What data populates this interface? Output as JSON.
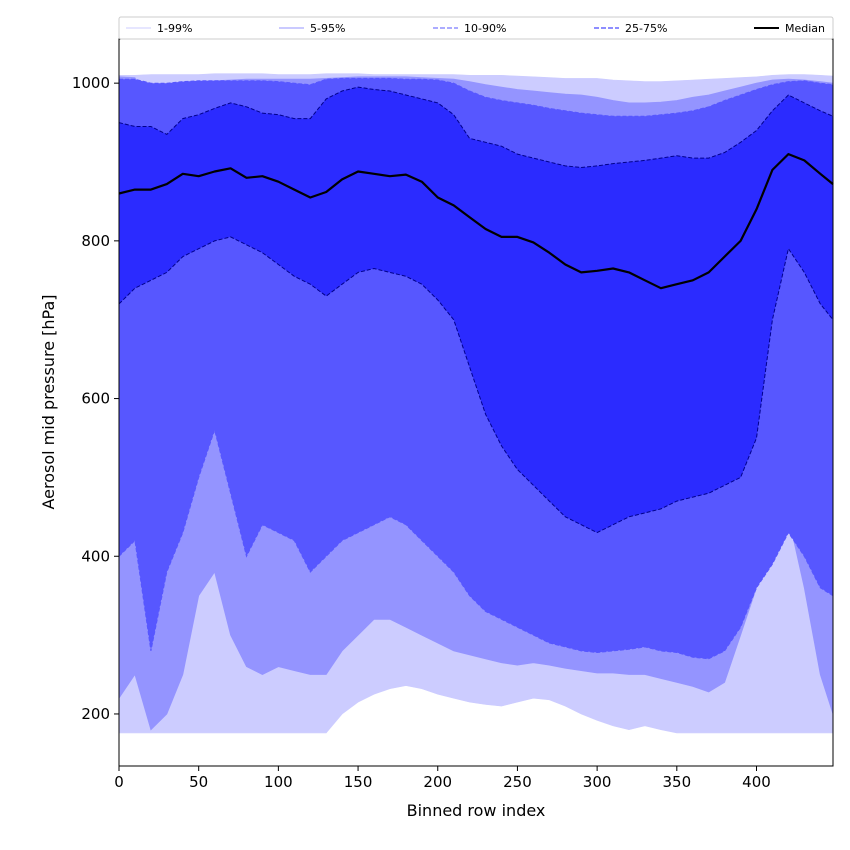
{
  "chart_data": {
    "type": "area",
    "title": "",
    "xlabel": "Binned row index",
    "ylabel": "Aerosol mid pressure [hPa]",
    "xlim": [
      0,
      448
    ],
    "ylim": [
      134,
      1056
    ],
    "xticks": [
      0,
      50,
      100,
      150,
      200,
      250,
      300,
      350,
      400
    ],
    "yticks": [
      200,
      400,
      600,
      800,
      1000
    ],
    "legend_position": "top",
    "colors": {
      "band_1_99": "#ccccff",
      "band_5_95": "#9494ff",
      "band_10_90": "#5757ff",
      "band_25_75": "#2b2bff",
      "median": "#000000"
    },
    "x": [
      0,
      10,
      20,
      30,
      40,
      50,
      60,
      70,
      80,
      90,
      100,
      110,
      120,
      130,
      140,
      150,
      160,
      170,
      180,
      190,
      200,
      210,
      220,
      230,
      240,
      250,
      260,
      270,
      280,
      290,
      300,
      310,
      320,
      330,
      340,
      350,
      360,
      370,
      380,
      390,
      400,
      410,
      420,
      430,
      440,
      448
    ],
    "series": [
      {
        "name": "1-99%",
        "lower": [
          176,
          176,
          176,
          176,
          176,
          176,
          176,
          176,
          176,
          176,
          176,
          176,
          176,
          176,
          200,
          215,
          225,
          232,
          236,
          232,
          225,
          220,
          215,
          212,
          210,
          215,
          220,
          218,
          210,
          200,
          192,
          185,
          180,
          185,
          180,
          176,
          176,
          176,
          176,
          176,
          176,
          176,
          176,
          176,
          176,
          176
        ],
        "upper": [
          1010,
          1010,
          1011,
          1011,
          1011,
          1011,
          1012,
          1012,
          1012,
          1012,
          1011,
          1011,
          1011,
          1012,
          1012,
          1012,
          1011,
          1011,
          1011,
          1011,
          1011,
          1011,
          1010,
          1010,
          1010,
          1009,
          1008,
          1007,
          1006,
          1006,
          1006,
          1004,
          1003,
          1002,
          1002,
          1003,
          1004,
          1005,
          1006,
          1007,
          1008,
          1010,
          1011,
          1011,
          1010,
          1009
        ]
      },
      {
        "name": "5-95%",
        "lower": [
          220,
          250,
          180,
          200,
          250,
          350,
          380,
          300,
          260,
          250,
          260,
          255,
          250,
          250,
          280,
          300,
          320,
          320,
          310,
          300,
          290,
          280,
          275,
          270,
          265,
          262,
          265,
          262,
          258,
          255,
          252,
          252,
          250,
          250,
          245,
          240,
          235,
          228,
          240,
          300,
          360,
          410,
          450,
          360,
          250,
          200
        ],
        "upper": [
          1008,
          1007,
          975,
          990,
          1000,
          1002,
          1003,
          1004,
          1005,
          1005,
          1005,
          1005,
          1005,
          1006,
          1007,
          1008,
          1008,
          1008,
          1008,
          1007,
          1006,
          1005,
          1002,
          998,
          995,
          992,
          990,
          988,
          986,
          985,
          982,
          978,
          975,
          975,
          976,
          978,
          982,
          985,
          990,
          995,
          1000,
          1004,
          1005,
          1004,
          1002,
          1000
        ]
      },
      {
        "name": "10-90%",
        "lower": [
          400,
          420,
          280,
          380,
          430,
          500,
          560,
          480,
          400,
          440,
          430,
          420,
          380,
          400,
          420,
          430,
          440,
          450,
          440,
          420,
          400,
          380,
          350,
          330,
          320,
          310,
          300,
          290,
          285,
          280,
          278,
          280,
          282,
          285,
          280,
          278,
          272,
          270,
          280,
          310,
          360,
          390,
          430,
          400,
          360,
          350
        ],
        "upper": [
          1005,
          1005,
          1000,
          1000,
          1002,
          1003,
          1003,
          1003,
          1003,
          1003,
          1002,
          1000,
          998,
          1005,
          1006,
          1006,
          1006,
          1006,
          1005,
          1005,
          1004,
          1000,
          990,
          982,
          978,
          975,
          972,
          968,
          965,
          962,
          960,
          958,
          958,
          958,
          960,
          962,
          965,
          970,
          978,
          985,
          992,
          998,
          1002,
          1003,
          1000,
          998
        ]
      },
      {
        "name": "25-75%",
        "lower": [
          720,
          740,
          750,
          760,
          780,
          790,
          800,
          805,
          795,
          785,
          770,
          755,
          745,
          730,
          745,
          760,
          765,
          760,
          755,
          745,
          725,
          700,
          640,
          580,
          540,
          510,
          490,
          470,
          450,
          440,
          430,
          440,
          450,
          455,
          460,
          470,
          475,
          480,
          490,
          500,
          550,
          700,
          790,
          760,
          720,
          700
        ],
        "upper": [
          950,
          945,
          945,
          935,
          955,
          960,
          968,
          975,
          970,
          962,
          960,
          955,
          955,
          980,
          990,
          995,
          992,
          990,
          985,
          980,
          975,
          960,
          930,
          925,
          920,
          910,
          905,
          900,
          895,
          893,
          895,
          898,
          900,
          902,
          905,
          908,
          905,
          905,
          912,
          925,
          940,
          965,
          985,
          975,
          965,
          958
        ]
      },
      {
        "name": "Median",
        "values": [
          860,
          865,
          865,
          872,
          885,
          882,
          888,
          892,
          880,
          882,
          875,
          865,
          855,
          862,
          878,
          888,
          885,
          882,
          884,
          875,
          855,
          845,
          830,
          815,
          805,
          805,
          798,
          785,
          770,
          760,
          762,
          765,
          760,
          750,
          740,
          745,
          750,
          760,
          780,
          800,
          840,
          890,
          910,
          902,
          885,
          872
        ]
      }
    ]
  }
}
